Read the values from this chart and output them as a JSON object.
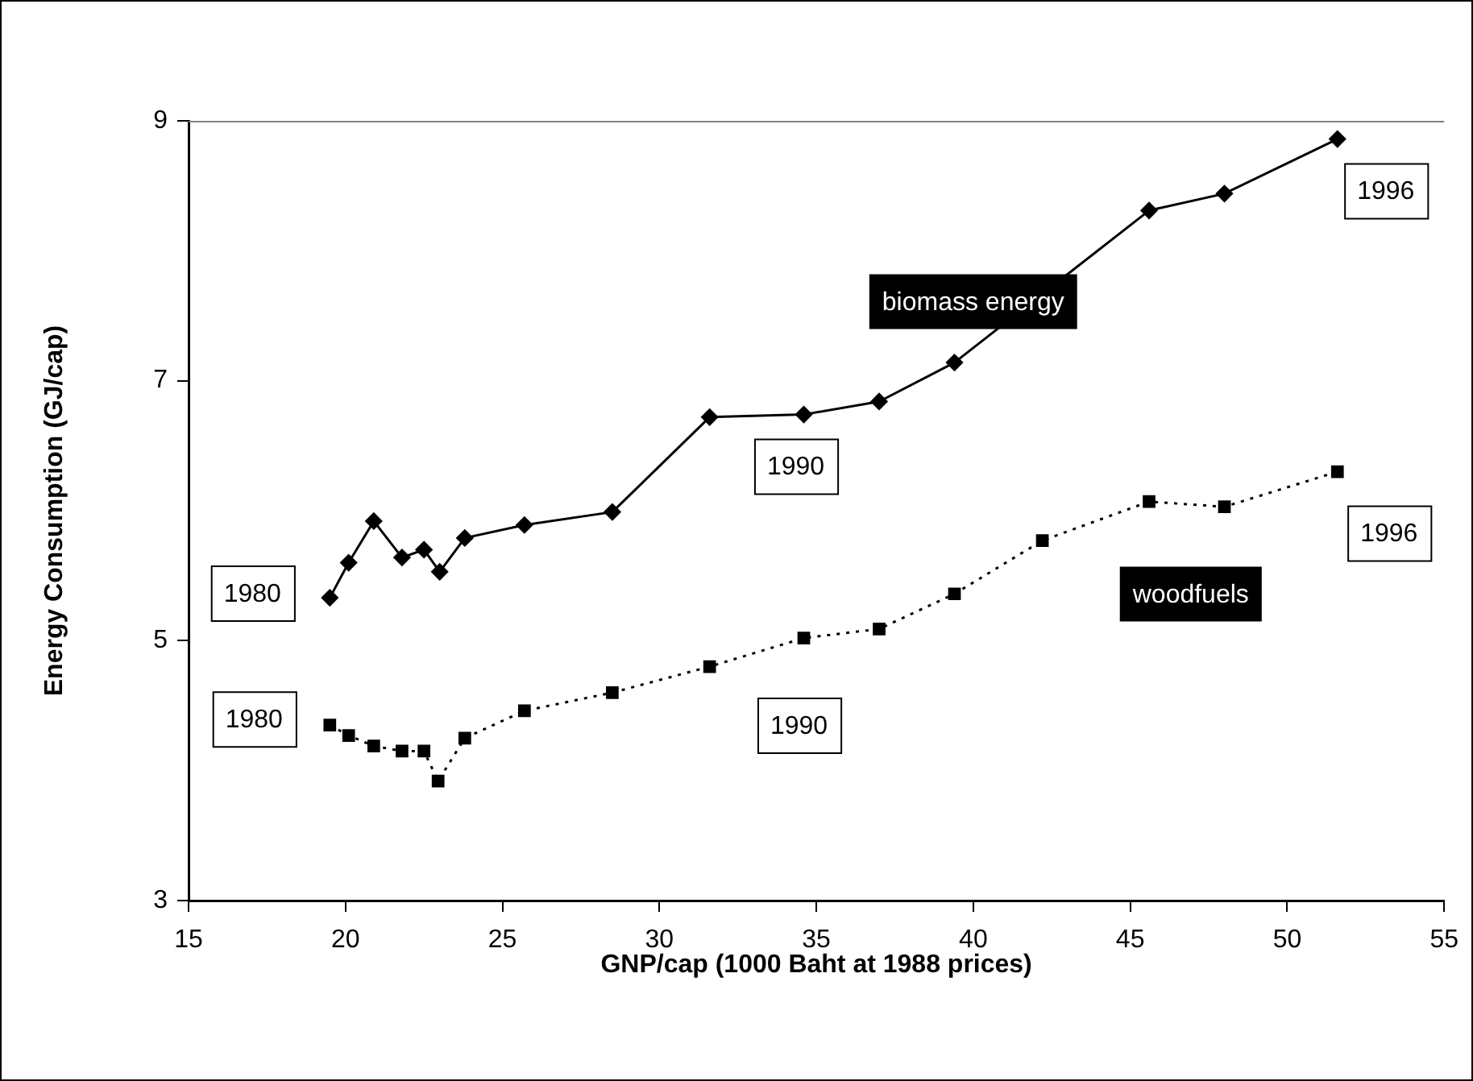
{
  "chart_data": {
    "type": "line",
    "xlabel": "GNP/cap (1000 Baht at 1988 prices)",
    "ylabel": "Energy Consumption (GJ/cap)",
    "xlim": [
      15,
      55
    ],
    "xticks": [
      15,
      20,
      25,
      30,
      35,
      40,
      45,
      50,
      55
    ],
    "ylim": [
      3,
      9
    ],
    "yticks": [
      3,
      5,
      7,
      9
    ],
    "grid": false,
    "legend": false,
    "series": [
      {
        "name": "biomass energy",
        "color": "#000000",
        "marker": "diamond",
        "line_style": "solid",
        "x": [
          19.5,
          20.1,
          20.9,
          21.8,
          22.5,
          23.0,
          23.8,
          25.7,
          28.5,
          31.6,
          34.6,
          37.0,
          39.4,
          45.6,
          48.0,
          51.6
        ],
        "values": [
          5.33,
          5.6,
          5.92,
          5.64,
          5.7,
          5.53,
          5.79,
          5.89,
          5.99,
          6.72,
          6.74,
          6.84,
          7.14,
          8.31,
          8.44,
          8.86
        ]
      },
      {
        "name": "woodfuels",
        "color": "#000000",
        "marker": "square",
        "line_style": "dotted",
        "x": [
          19.5,
          20.1,
          20.9,
          21.8,
          22.5,
          22.95,
          23.8,
          25.7,
          28.5,
          31.6,
          34.6,
          37.0,
          39.4,
          42.2,
          45.6,
          48.0,
          51.6
        ],
        "values": [
          4.35,
          4.27,
          4.19,
          4.15,
          4.15,
          3.92,
          4.25,
          4.46,
          4.6,
          4.8,
          5.02,
          5.09,
          5.36,
          5.77,
          6.07,
          6.03,
          6.3
        ]
      }
    ],
    "annotations": [
      {
        "text": "1980",
        "x": 19.5,
        "y": 5.33
      },
      {
        "text": "1980",
        "x": 19.5,
        "y": 4.35
      },
      {
        "text": "1990",
        "x": 34.6,
        "y": 6.74
      },
      {
        "text": "1990",
        "x": 34.6,
        "y": 5.02
      },
      {
        "text": "1996",
        "x": 51.6,
        "y": 8.86
      },
      {
        "text": "1996",
        "x": 51.6,
        "y": 6.3
      }
    ]
  }
}
